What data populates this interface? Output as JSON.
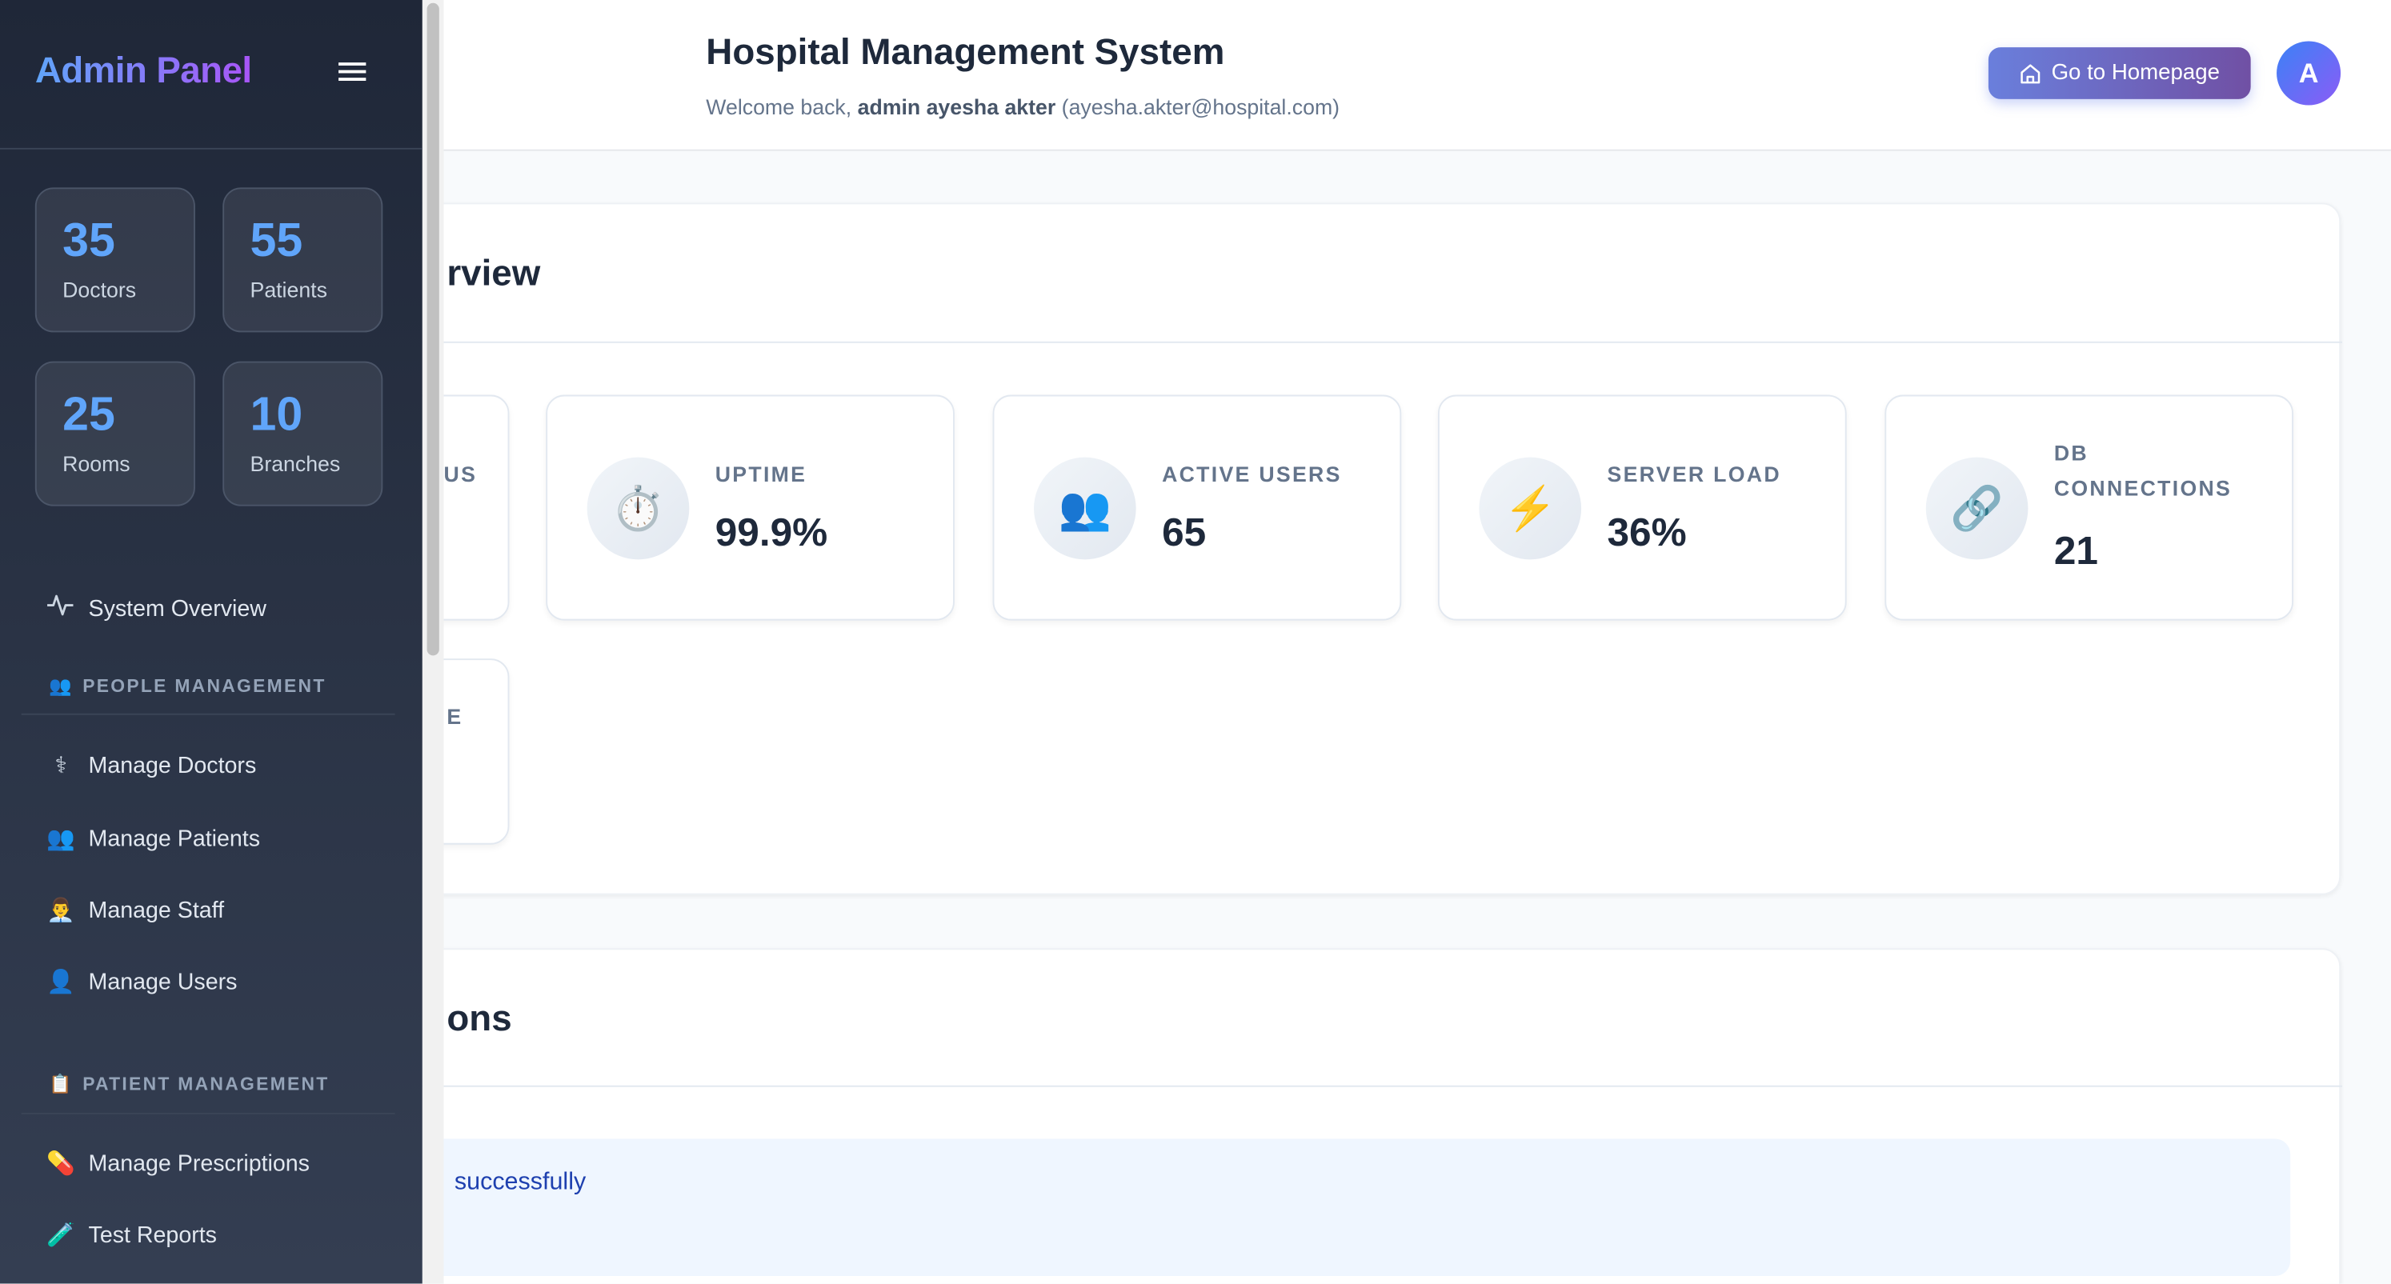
{
  "sidebar": {
    "brand": "Admin Panel",
    "stats": [
      {
        "value": "35",
        "label": "Doctors"
      },
      {
        "value": "55",
        "label": "Patients"
      },
      {
        "value": "25",
        "label": "Rooms"
      },
      {
        "value": "10",
        "label": "Branches"
      }
    ],
    "overview": {
      "label": "System Overview",
      "icon": "activity-icon"
    },
    "sections": [
      {
        "title": "PEOPLE MANAGEMENT",
        "icon": "👥",
        "items": [
          {
            "label": "Manage Doctors",
            "icon": "⚕"
          },
          {
            "label": "Manage Patients",
            "icon": "👥"
          },
          {
            "label": "Manage Staff",
            "icon": "👨‍💼"
          },
          {
            "label": "Manage Users",
            "icon": "👤"
          }
        ]
      },
      {
        "title": "PATIENT MANAGEMENT",
        "icon": "📋",
        "items": [
          {
            "label": "Manage Prescriptions",
            "icon": "💊"
          },
          {
            "label": "Test Reports",
            "icon": "🧪"
          }
        ]
      }
    ]
  },
  "header": {
    "title": "Hospital Management System",
    "welcome_prefix": "Welcome back,",
    "user_name": "admin ayesha akter",
    "user_email": "(ayesha.akter@hospital.com)",
    "home_button": "Go to Homepage",
    "avatar_initial": "A"
  },
  "overview_panel": {
    "title_visible": "rview",
    "partial_cards": [
      "US",
      "E"
    ],
    "stats": [
      {
        "label": "UPTIME",
        "value": "99.9%",
        "icon": "⏱️"
      },
      {
        "label": "ACTIVE USERS",
        "value": "65",
        "icon": "👥"
      },
      {
        "label": "SERVER LOAD",
        "value": "36%",
        "icon": "⚡"
      },
      {
        "label": "DB CONNECTIONS",
        "value": "21",
        "icon": "🔗"
      }
    ]
  },
  "second_panel": {
    "title_visible": "ons",
    "alert_text": "successfully"
  },
  "colors": {
    "accent": "#60a5fa",
    "brand_gradient_end": "#a855f7",
    "sidebar_bg": "#1f2738",
    "alert_bg": "#eff6ff",
    "alert_text": "#1e40af"
  }
}
